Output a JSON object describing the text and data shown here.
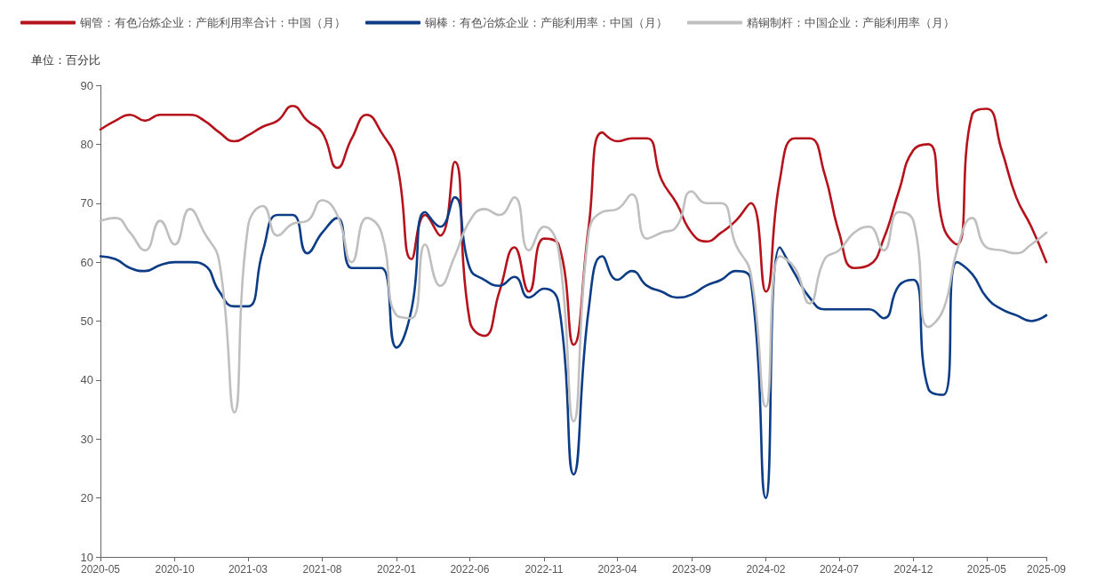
{
  "chart_data": {
    "type": "line",
    "ylabel": "单位：百分比",
    "x": [
      "2020-05",
      "2020-06",
      "2020-07",
      "2020-08",
      "2020-09",
      "2020-10",
      "2020-11",
      "2020-12",
      "2021-01",
      "2021-02",
      "2021-03",
      "2021-04",
      "2021-05",
      "2021-06",
      "2021-07",
      "2021-08",
      "2021-09",
      "2021-10",
      "2021-11",
      "2021-12",
      "2022-01",
      "2022-02",
      "2022-03",
      "2022-04",
      "2022-05",
      "2022-06",
      "2022-07",
      "2022-08",
      "2022-09",
      "2022-10",
      "2022-11",
      "2022-12",
      "2023-01",
      "2023-02",
      "2023-03",
      "2023-04",
      "2023-05",
      "2023-06",
      "2023-07",
      "2023-08",
      "2023-09",
      "2023-10",
      "2023-11",
      "2023-12",
      "2024-01",
      "2024-02",
      "2024-03",
      "2024-04",
      "2024-05",
      "2024-06",
      "2024-07",
      "2024-08",
      "2024-09",
      "2024-10",
      "2024-11",
      "2024-12",
      "2025-01",
      "2025-02",
      "2025-03",
      "2025-04",
      "2025-05",
      "2025-06",
      "2025-07",
      "2025-08",
      "2025-09"
    ],
    "series": [
      {
        "name": "铜管：有色冶炼企业：产能利用率合计：中国（月）",
        "color": "#b5121b",
        "values": [
          82.5,
          84,
          85,
          84,
          85,
          85,
          85,
          84,
          82,
          80.5,
          81.5,
          83,
          84,
          86.5,
          84,
          82,
          76,
          81,
          85,
          82,
          77,
          60.5,
          68,
          64.5,
          77,
          50,
          47.5,
          55,
          62.5,
          55,
          64,
          63,
          46,
          66,
          82,
          80.5,
          81,
          81,
          74,
          70,
          65,
          63.5,
          65,
          67,
          70,
          55,
          74,
          81,
          81,
          75,
          65,
          59,
          59.5,
          64,
          72,
          79,
          80,
          66,
          63,
          85,
          86,
          79,
          71,
          66,
          60
        ]
      },
      {
        "name": "铜棒：有色冶炼企业：产能利用率：中国（月）",
        "color": "#0c3c86",
        "values": [
          61,
          60.5,
          59,
          58.5,
          59.5,
          60,
          60,
          59.5,
          55,
          52.5,
          52.5,
          62,
          68,
          68,
          61.5,
          65,
          67.5,
          59,
          59,
          59,
          45.5,
          52,
          68.5,
          66,
          71,
          59,
          57,
          56,
          57.5,
          54,
          55.5,
          53,
          24,
          52,
          61,
          57,
          58.5,
          56,
          55,
          54,
          54.5,
          56,
          57,
          58.5,
          57,
          20,
          62.5,
          58,
          54,
          52,
          52,
          52,
          52,
          50.5,
          56,
          57,
          38.5,
          37.5,
          60,
          58,
          54,
          52,
          51,
          50,
          51
        ]
      },
      {
        "name": "精铜制杆：中国企业：产能利用率（月）",
        "color": "#bfbfbf",
        "values": [
          67,
          67.5,
          65,
          62,
          67,
          63,
          69,
          65,
          60,
          34.5,
          66,
          69.5,
          64.5,
          66.5,
          67,
          70.5,
          68,
          60,
          67.5,
          65,
          51,
          50.5,
          63,
          56,
          61,
          67,
          69,
          68,
          71,
          62,
          66,
          62,
          33,
          65,
          68.5,
          69,
          71.5,
          64,
          65,
          66,
          72,
          70,
          70,
          63,
          58,
          35.5,
          61,
          59,
          53,
          60.5,
          62,
          65,
          66,
          62,
          68.5,
          67,
          49,
          52,
          62,
          67.5,
          62.5,
          62,
          61.5,
          63,
          65
        ]
      }
    ],
    "xlim": [
      "2020-05",
      "2025-09"
    ],
    "xticks": [
      "2020-05",
      "2020-10",
      "2021-03",
      "2021-08",
      "2022-01",
      "2022-06",
      "2022-11",
      "2023-04",
      "2023-09",
      "2024-02",
      "2024-07",
      "2024-12",
      "2025-05",
      "2025-09"
    ],
    "ylim": [
      10,
      90
    ],
    "yticks": [
      10,
      20,
      30,
      40,
      50,
      60,
      70,
      80,
      90
    ],
    "grid": false,
    "legend": "top left",
    "marker": "none",
    "line_style": "solid"
  }
}
